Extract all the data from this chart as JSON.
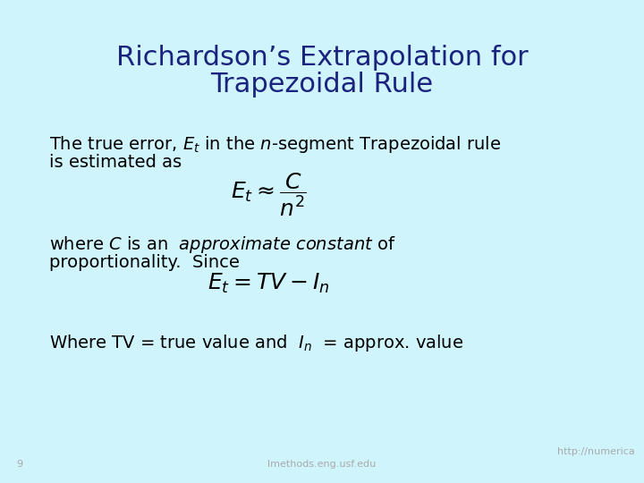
{
  "bg_color": "#cff4fc",
  "title_line1": "Richardson’s Extrapolation for",
  "title_line2": "Trapezoidal Rule",
  "title_color": "#1a237e",
  "title_fontsize": 22,
  "body_color": "#000000",
  "body_fontsize": 14,
  "formula1": "$E_t \\approx \\dfrac{C}{n^2}$",
  "formula2": "$E_t = TV - I_n$",
  "formula_fontsize": 16,
  "footer_left_num": "9",
  "footer_center": "lmethods.eng.usf.edu",
  "footer_right": "http://numerica",
  "footer_color": "#aaaaaa",
  "footer_fontsize": 8
}
